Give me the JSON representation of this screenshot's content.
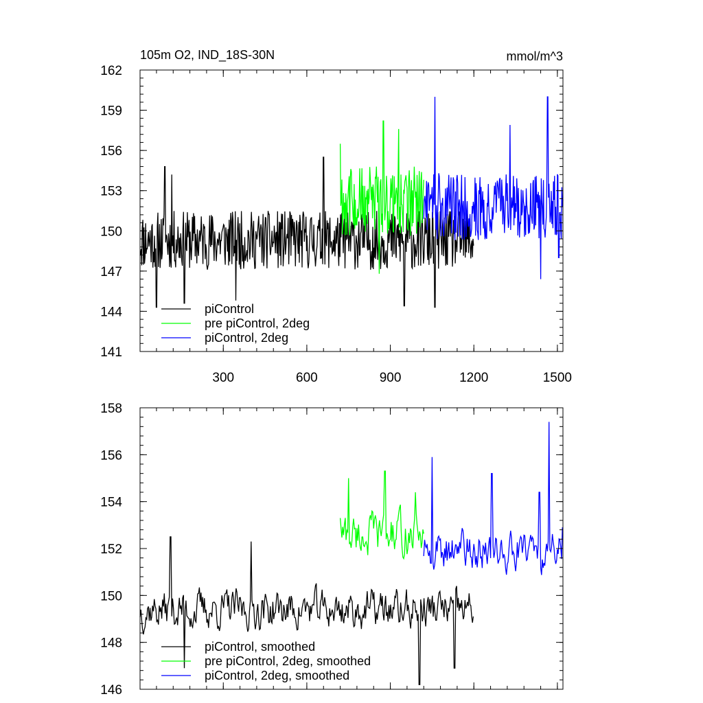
{
  "chart_data": [
    {
      "type": "line",
      "title_left": "105m O2, IND_18S-30N",
      "title_right": "mmol/m^3",
      "xlim": [
        1,
        1520
      ],
      "ylim": [
        141,
        162
      ],
      "x_ticks": [
        "300",
        "600",
        "900",
        "1200",
        "1500"
      ],
      "y_ticks": [
        "141",
        "144",
        "147",
        "150",
        "153",
        "156",
        "159",
        "162"
      ],
      "legend_position": "bottom-left",
      "series": [
        {
          "name": "piControl",
          "color": "#000000",
          "x_start": 1,
          "x_end": 1200,
          "mean": 149.3,
          "amp": 2.2,
          "trend": 0.0,
          "peaks": [
            [
              60,
              144.3
            ],
            [
              90,
              154.8
            ],
            [
              115,
              154.2
            ],
            [
              160,
              144.6
            ],
            [
              345,
              144.8
            ],
            [
              660,
              155.5
            ],
            [
              950,
              144.4
            ],
            [
              1060,
              144.3
            ]
          ]
        },
        {
          "name": "pre piControl, 2deg",
          "color": "#00ff00",
          "x_start": 720,
          "x_end": 1020,
          "mean": 152.2,
          "amp": 2.6,
          "trend": 0.0,
          "peaks": [
            [
              720,
              156.5
            ],
            [
              860,
              146.8
            ],
            [
              875,
              158.2
            ],
            [
              930,
              157.6
            ]
          ]
        },
        {
          "name": "piControl, 2deg",
          "color": "#0000ff",
          "x_start": 1020,
          "x_end": 1520,
          "mean": 151.8,
          "amp": 2.5,
          "trend": 0.0,
          "peaks": [
            [
              1060,
              160.0
            ],
            [
              1330,
              157.9
            ],
            [
              1440,
              146.4
            ],
            [
              1465,
              160.0
            ],
            [
              1505,
              148.0
            ]
          ]
        }
      ]
    },
    {
      "type": "line",
      "xlim": [
        1,
        1520
      ],
      "ylim": [
        146,
        158
      ],
      "x_ticks": [
        "300",
        "600",
        "900",
        "1200",
        "1500"
      ],
      "y_ticks": [
        "146",
        "148",
        "150",
        "152",
        "154",
        "156",
        "158"
      ],
      "legend_position": "bottom-left",
      "series": [
        {
          "name": "piControl, smoothed",
          "color": "#000000",
          "x_start": 1,
          "x_end": 1200,
          "mean": 149.4,
          "amp": 0.9,
          "trend": 0.0,
          "peaks": [
            [
              110,
              152.5
            ],
            [
              160,
              146.9
            ],
            [
              400,
              152.3
            ],
            [
              1005,
              146.2
            ],
            [
              1130,
              146.9
            ]
          ]
        },
        {
          "name": "pre piControl, 2deg, smoothed",
          "color": "#00ff00",
          "x_start": 720,
          "x_end": 1020,
          "mean": 152.6,
          "amp": 1.0,
          "trend": 0.0,
          "peaks": [
            [
              720,
              153.3
            ],
            [
              750,
              155.0
            ],
            [
              880,
              155.3
            ],
            [
              990,
              154.4
            ]
          ]
        },
        {
          "name": "piControl, 2deg, smoothed",
          "color": "#0000ff",
          "x_start": 1020,
          "x_end": 1520,
          "mean": 151.9,
          "amp": 0.9,
          "trend": 0.0,
          "peaks": [
            [
              1050,
              155.9
            ],
            [
              1265,
              155.2
            ],
            [
              1435,
              154.4
            ],
            [
              1470,
              157.4
            ],
            [
              1518,
              152.9
            ]
          ]
        }
      ]
    }
  ]
}
